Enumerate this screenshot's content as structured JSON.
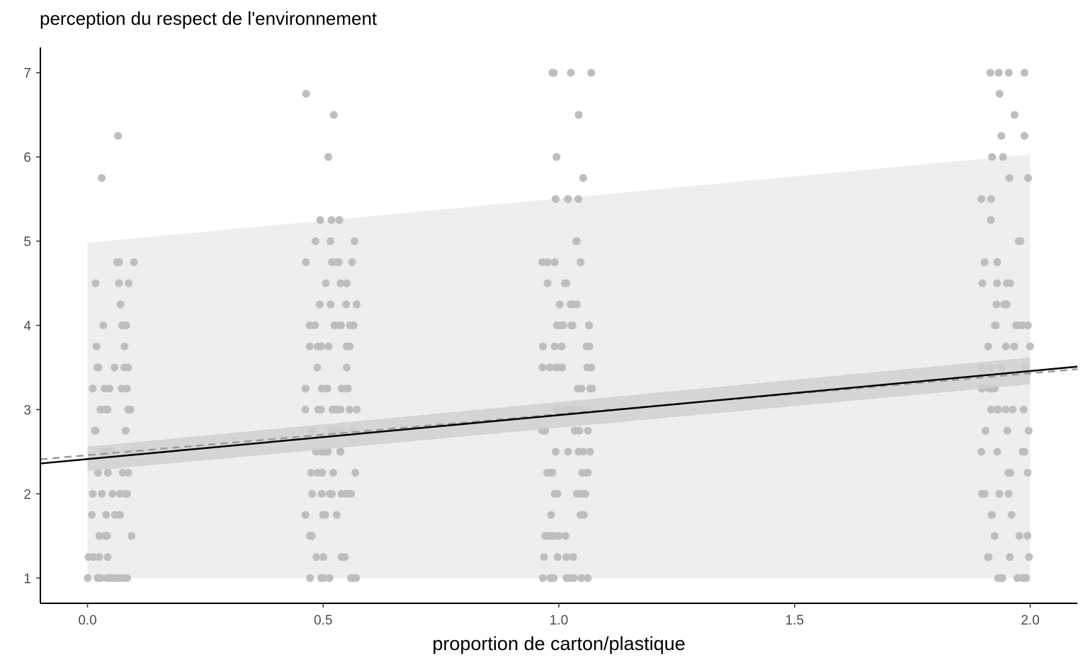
{
  "chart_data": {
    "type": "scatter",
    "title": "perception du respect de l'environnement",
    "xlabel": "proportion de carton/plastique",
    "ylabel": "",
    "xlim": [
      -0.1,
      2.1
    ],
    "ylim": [
      0.7,
      7.3
    ],
    "x_ticks": [
      {
        "value": 0.0,
        "label": "0.0"
      },
      {
        "value": 0.5,
        "label": "0.5"
      },
      {
        "value": 1.0,
        "label": "1.0"
      },
      {
        "value": 1.5,
        "label": "1.5"
      },
      {
        "value": 2.0,
        "label": "2.0"
      }
    ],
    "y_ticks": [
      {
        "value": 1,
        "label": "1"
      },
      {
        "value": 2,
        "label": "2"
      },
      {
        "value": 3,
        "label": "3"
      },
      {
        "value": 4,
        "label": "4"
      },
      {
        "value": 5,
        "label": "5"
      },
      {
        "value": 6,
        "label": "6"
      },
      {
        "value": 7,
        "label": "7"
      }
    ],
    "prediction_band": {
      "x": [
        0,
        2
      ],
      "lower": [
        1,
        1
      ],
      "upper": [
        4.98,
        6.03
      ]
    },
    "confidence_band": {
      "x": [
        0,
        2
      ],
      "lower": [
        2.27,
        3.3
      ],
      "upper": [
        2.56,
        3.62
      ]
    },
    "fit_line": {
      "x": [
        -0.1,
        2.1
      ],
      "y": [
        2.36,
        3.51
      ]
    },
    "fit_line_dashed": {
      "x": [
        -0.1,
        2.1
      ],
      "y": [
        2.41,
        3.48
      ]
    },
    "groups": [
      {
        "x": 0.0,
        "spread": 0.11,
        "values": [
          6.25,
          5.75,
          4.75,
          4.75,
          4.75,
          4.5,
          4.5,
          4.5,
          4.25,
          4.0,
          4.0,
          4.0,
          3.75,
          3.75,
          3.5,
          3.5,
          3.5,
          3.5,
          3.5,
          3.25,
          3.25,
          3.25,
          3.25,
          3.25,
          3.0,
          3.0,
          3.0,
          3.0,
          3.0,
          3.0,
          2.75,
          2.75,
          2.75,
          2.5,
          2.5,
          2.5,
          2.5,
          2.5,
          2.25,
          2.25,
          2.25,
          2.25,
          2.0,
          2.0,
          2.0,
          2.0,
          2.0,
          2.0,
          1.75,
          1.75,
          1.75,
          1.75,
          1.75,
          1.5,
          1.5,
          1.5,
          1.5,
          1.5,
          1.25,
          1.25,
          1.25,
          1.25,
          1.0,
          1.0,
          1.0,
          1.0,
          1.0,
          1.0,
          1.0,
          1.0,
          1.0,
          1.0,
          1.0,
          1.0
        ]
      },
      {
        "x": 0.5,
        "spread": 0.11,
        "values": [
          6.75,
          6.5,
          6.0,
          5.25,
          5.25,
          5.25,
          5.0,
          5.0,
          5.0,
          4.75,
          4.75,
          4.75,
          4.75,
          4.75,
          4.75,
          4.5,
          4.5,
          4.5,
          4.25,
          4.25,
          4.25,
          4.25,
          4.0,
          4.0,
          4.0,
          4.0,
          4.0,
          4.0,
          4.0,
          4.0,
          3.75,
          3.75,
          3.75,
          3.75,
          3.75,
          3.75,
          3.5,
          3.5,
          3.25,
          3.25,
          3.25,
          3.25,
          3.25,
          3.25,
          3.25,
          3.0,
          3.0,
          3.0,
          3.0,
          3.0,
          3.0,
          3.0,
          3.0,
          3.0,
          2.75,
          2.75,
          2.75,
          2.75,
          2.75,
          2.75,
          2.75,
          2.5,
          2.5,
          2.5,
          2.5,
          2.5,
          2.5,
          2.5,
          2.25,
          2.25,
          2.25,
          2.25,
          2.25,
          2.0,
          2.0,
          2.0,
          2.0,
          2.0,
          2.0,
          2.0,
          2.0,
          2.0,
          1.75,
          1.75,
          1.75,
          1.75,
          1.5,
          1.5,
          1.5,
          1.5,
          1.25,
          1.25,
          1.25,
          1.25,
          1.25,
          1.0,
          1.0,
          1.0,
          1.0,
          1.0,
          1.0,
          1.0
        ]
      },
      {
        "x": 1.0,
        "spread": 0.11,
        "values": [
          7.0,
          7.0,
          7.0,
          7.0,
          7.0,
          6.5,
          6.0,
          5.75,
          5.5,
          5.5,
          5.5,
          5.5,
          5.0,
          5.0,
          4.75,
          4.75,
          4.75,
          4.75,
          4.5,
          4.5,
          4.5,
          4.25,
          4.25,
          4.25,
          4.25,
          4.0,
          4.0,
          4.0,
          4.0,
          4.0,
          4.0,
          4.0,
          4.0,
          4.0,
          3.75,
          3.75,
          3.75,
          3.75,
          3.75,
          3.75,
          3.5,
          3.5,
          3.5,
          3.5,
          3.5,
          3.5,
          3.5,
          3.25,
          3.25,
          3.25,
          3.25,
          3.0,
          3.0,
          3.0,
          3.0,
          3.0,
          3.0,
          3.0,
          3.0,
          2.75,
          2.75,
          2.75,
          2.75,
          2.75,
          2.5,
          2.5,
          2.5,
          2.5,
          2.5,
          2.25,
          2.25,
          2.25,
          2.25,
          2.25,
          2.25,
          2.0,
          2.0,
          2.0,
          2.0,
          2.0,
          2.0,
          1.75,
          1.75,
          1.75,
          1.75,
          1.5,
          1.5,
          1.5,
          1.5,
          1.5,
          1.5,
          1.25,
          1.25,
          1.25,
          1.25,
          1.0,
          1.0,
          1.0,
          1.0,
          1.0,
          1.0,
          1.0,
          1.0
        ]
      },
      {
        "x": 2.0,
        "spread": 0.11,
        "values": [
          7.0,
          7.0,
          7.0,
          7.0,
          6.75,
          6.5,
          6.25,
          6.25,
          6.0,
          6.0,
          5.75,
          5.75,
          5.5,
          5.5,
          5.25,
          5.0,
          5.0,
          4.75,
          4.75,
          4.5,
          4.5,
          4.5,
          4.5,
          4.25,
          4.25,
          4.25,
          4.25,
          4.0,
          4.0,
          4.0,
          4.0,
          4.0,
          4.0,
          3.75,
          3.75,
          3.75,
          3.75,
          3.5,
          3.5,
          3.5,
          3.5,
          3.25,
          3.25,
          3.25,
          3.25,
          3.25,
          3.0,
          3.0,
          3.0,
          3.0,
          3.0,
          3.0,
          3.0,
          2.75,
          2.75,
          2.75,
          2.5,
          2.5,
          2.5,
          2.5,
          2.25,
          2.25,
          2.25,
          2.0,
          2.0,
          2.0,
          2.0,
          1.75,
          1.75,
          1.75,
          1.5,
          1.5,
          1.5,
          1.25,
          1.25,
          1.25,
          1.25,
          1.0,
          1.0,
          1.0,
          1.0,
          1.0,
          1.0
        ]
      }
    ],
    "colors": {
      "points": "#bebebe",
      "prediction_band": "#eeeeee",
      "confidence_band": "#d0d0d0",
      "fit_line": "#000000",
      "fit_line_dashed": "#9a9a9a",
      "axis": "#000000",
      "text": "#000000",
      "tick_text": "#4d4d4d"
    }
  }
}
